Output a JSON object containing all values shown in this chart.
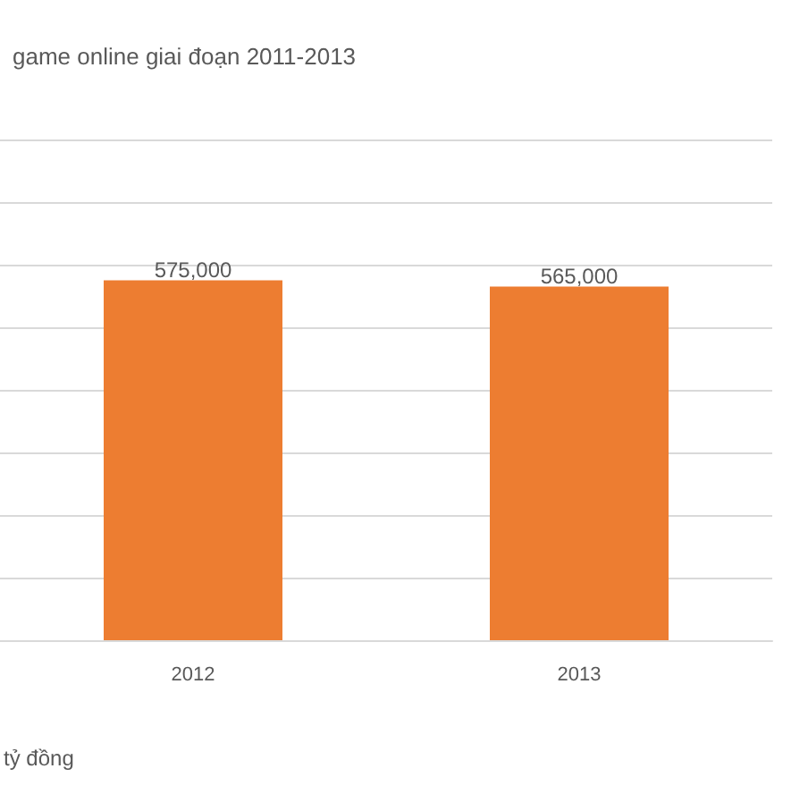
{
  "chart_data": {
    "type": "bar",
    "title": "game online giai đoạn 2011-2013",
    "annotations": [
      "tỷ đồng"
    ],
    "categories": [
      "2012",
      "2013"
    ],
    "values": [
      575000,
      565000
    ],
    "color": "#ed7d31",
    "data_labels": true,
    "value_labels": [
      "575,000",
      "565,000"
    ],
    "ylim": [
      0,
      800000
    ],
    "yticks": [
      {
        "value": 0,
        "label": null
      },
      {
        "value": 100000,
        "label": null
      },
      {
        "value": 200000,
        "label": null
      },
      {
        "value": 300000,
        "label": null
      },
      {
        "value": 400000,
        "label": null
      },
      {
        "value": 500000,
        "label": null
      },
      {
        "value": 600000,
        "label": null
      },
      {
        "value": 700000,
        "label": null
      },
      {
        "value": 800000,
        "label": null
      }
    ],
    "grid": true,
    "tick_labels": "x"
  }
}
